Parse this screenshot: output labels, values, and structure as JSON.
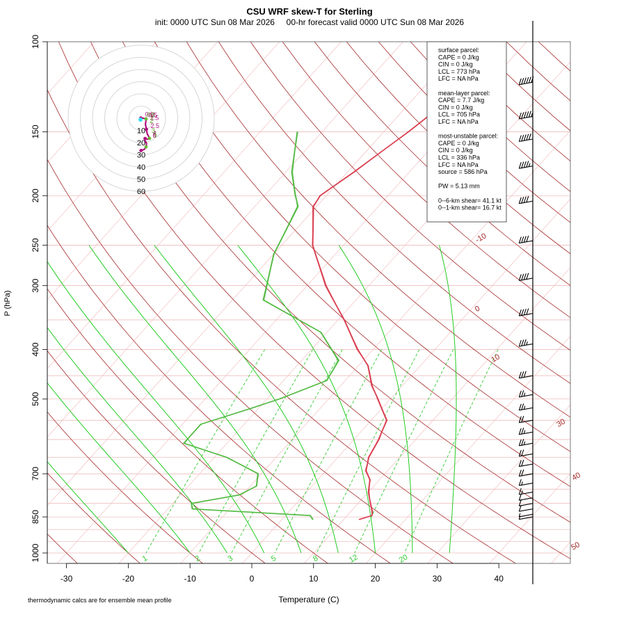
{
  "title": "CSU WRF skew-T for Sterling",
  "subtitle": "init: 0000 UTC Sun 08 Mar 2026     00-hr forecast valid 0000 UTC Sun 08 Mar 2026",
  "footnote": "thermodynamic calcs are for ensemble mean profile",
  "colors": {
    "isobar": "#e8a0a0",
    "isotherm": "#f2b8b8",
    "dry_adiabat": "#a52a2a",
    "moist_adiabat": "#22cc22",
    "mixing_ratio": "#33cc33",
    "temperature": "#d94050",
    "dewpoint": "#55bb44",
    "hodo_path": "#b01080",
    "hodo_ring": "#cccccc",
    "wind_barb": "#000000"
  },
  "info_box": {
    "lines": [
      "surface parcel:",
      "CAPE = 0 J/kg",
      "CIN = 0 J/kg",
      "LCL = 773 hPa",
      "LFC = NA hPa",
      "",
      "mean-layer parcel:",
      "CAPE = 7.7 J/kg",
      "CIN = 0 J/kg",
      "LCL = 705 hPa",
      "LFC = NA hPa",
      "",
      "most-unstable parcel:",
      "CAPE = 0 J/kg",
      "CIN = 0 J/kg",
      "LCL = 336 hPa",
      "LFC = NA hPa",
      "source = 586 hPa",
      "",
      "PW =  5.13 mm",
      "",
      "0--6-km shear= 41.1 kt",
      "0--1-km shear= 16.7 kt"
    ]
  },
  "hodograph": {
    "ring_labels": [
      "10",
      "20",
      "30",
      "40",
      "50",
      "60"
    ],
    "path": [
      [
        -0.3,
        0.2
      ],
      [
        1.2,
        0.1
      ],
      [
        2.5,
        -0.2
      ],
      [
        4.0,
        -0.5
      ],
      [
        3.8,
        -2.5
      ],
      [
        3.5,
        -5.0
      ],
      [
        4.3,
        -9.0
      ],
      [
        5.0,
        -13.0
      ],
      [
        6.2,
        -15.0
      ],
      [
        6.8,
        -16.5
      ],
      [
        6.0,
        -17.0
      ],
      [
        4.8,
        -17.2
      ],
      [
        3.2,
        -16.6
      ],
      [
        3.0,
        -18.2
      ],
      [
        4.4,
        -20.5
      ],
      [
        4.0,
        -23.5
      ],
      [
        2.6,
        -25.5
      ],
      [
        0.8,
        -26.2
      ],
      [
        -0.2,
        -26.5
      ]
    ],
    "path_labels": [
      "0.0",
      "0.1",
      "0.5",
      "1",
      "1.5",
      "2",
      "2.5",
      "3",
      "4",
      "5",
      "6"
    ]
  },
  "chart_data": {
    "type": "skew-t",
    "xlabel": "Temperature (C)",
    "ylabel": "P (hPa)",
    "x_ticks": [
      -30,
      -20,
      -10,
      0,
      10,
      20,
      30,
      40
    ],
    "y_ticks": [
      100,
      150,
      200,
      250,
      300,
      400,
      500,
      700,
      850,
      1000
    ],
    "pressure_range": [
      100,
      1000
    ],
    "temp_range": [
      -33,
      46
    ],
    "dry_adiabat_labels": [
      "-10",
      "0",
      "10",
      "30",
      "40",
      "50"
    ],
    "mixing_ratio_labels": [
      "1",
      "2",
      "3",
      "5",
      "8",
      "12",
      "20"
    ],
    "series": [
      {
        "name": "temperature",
        "pressure": [
          860,
          845,
          830,
          800,
          760,
          720,
          690,
          650,
          600,
          550,
          500,
          470,
          430,
          400,
          350,
          300,
          250,
          210,
          200,
          180,
          150,
          120,
          115
        ],
        "values": [
          12.5,
          14.0,
          13.5,
          12.0,
          10.0,
          8.5,
          6.5,
          5.0,
          4.0,
          2.5,
          -2.0,
          -5.0,
          -8.5,
          -12.5,
          -19.0,
          -27.0,
          -35.0,
          -40.5,
          -41.0,
          -39.0,
          -36.0,
          -33.0,
          -32.5
        ]
      },
      {
        "name": "dewpoint",
        "pressure": [
          860,
          845,
          820,
          800,
          770,
          740,
          700,
          650,
          610,
          560,
          520,
          500,
          460,
          420,
          370,
          320,
          260,
          210,
          200,
          180,
          150
        ],
        "values": [
          5.0,
          4.0,
          -16.0,
          -17.0,
          -10.5,
          -9.0,
          -10.5,
          -18.0,
          -27.0,
          -27.0,
          -21.0,
          -18.0,
          -13.0,
          -14.0,
          -21.0,
          -35.0,
          -40.0,
          -43.0,
          -45.0,
          -49.0,
          -54.0
        ]
      }
    ],
    "wind_barbs": {
      "pressure": [
        120,
        140,
        155,
        175,
        205,
        245,
        290,
        340,
        390,
        450,
        490,
        520,
        550,
        580,
        610,
        640,
        670,
        700,
        730,
        760,
        780,
        800,
        820,
        840,
        850
      ],
      "speed_kt": [
        60,
        55,
        50,
        45,
        40,
        40,
        40,
        40,
        35,
        30,
        25,
        25,
        20,
        25,
        25,
        20,
        20,
        20,
        15,
        15,
        10,
        10,
        10,
        5,
        5
      ]
    }
  }
}
